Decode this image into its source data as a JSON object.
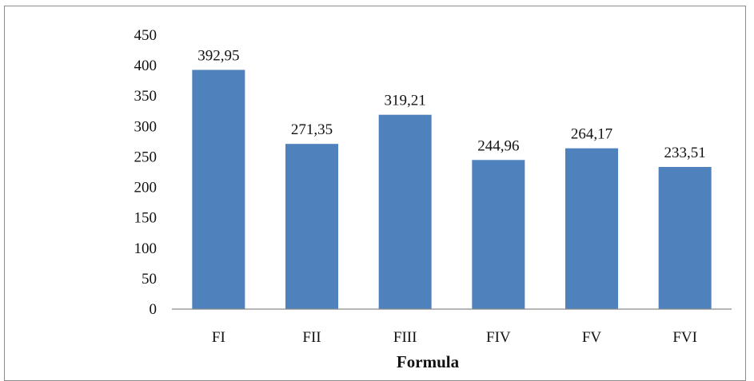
{
  "chart_data": {
    "type": "bar",
    "categories": [
      "FI",
      "FII",
      "FIII",
      "FIV",
      "FV",
      "FVI"
    ],
    "values": [
      392.95,
      271.35,
      319.21,
      244.96,
      264.17,
      233.51
    ],
    "data_labels": [
      "392,95",
      "271,35",
      "319,21",
      "244,96",
      "264,17",
      "233,51"
    ],
    "title": "",
    "xlabel": "Formula",
    "ylabel": "",
    "ylim": [
      0,
      450
    ],
    "yticks": [
      0,
      50,
      100,
      150,
      200,
      250,
      300,
      350,
      400,
      450
    ],
    "grid": false,
    "legend": "none",
    "bar_color": "#4f81bd"
  }
}
